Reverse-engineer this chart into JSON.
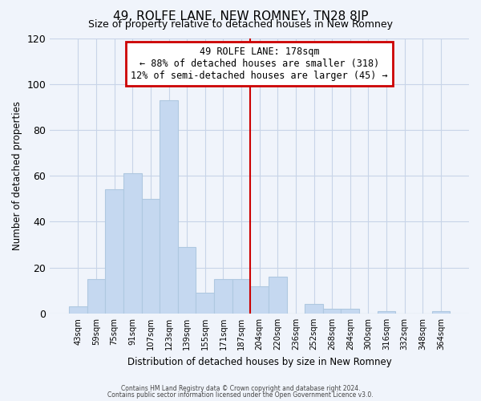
{
  "title": "49, ROLFE LANE, NEW ROMNEY, TN28 8JP",
  "subtitle": "Size of property relative to detached houses in New Romney",
  "xlabel": "Distribution of detached houses by size in New Romney",
  "ylabel": "Number of detached properties",
  "bar_labels": [
    "43sqm",
    "59sqm",
    "75sqm",
    "91sqm",
    "107sqm",
    "123sqm",
    "139sqm",
    "155sqm",
    "171sqm",
    "187sqm",
    "204sqm",
    "220sqm",
    "236sqm",
    "252sqm",
    "268sqm",
    "284sqm",
    "300sqm",
    "316sqm",
    "332sqm",
    "348sqm",
    "364sqm"
  ],
  "bar_values": [
    3,
    15,
    54,
    61,
    50,
    93,
    29,
    9,
    15,
    15,
    12,
    16,
    0,
    4,
    2,
    2,
    0,
    1,
    0,
    0,
    1
  ],
  "bar_color": "#c5d8f0",
  "bar_edge_color": "#afc8e0",
  "ylim": [
    0,
    120
  ],
  "yticks": [
    0,
    20,
    40,
    60,
    80,
    100,
    120
  ],
  "property_line_x": 9.5,
  "annotation_title": "49 ROLFE LANE: 178sqm",
  "annotation_line1": "← 88% of detached houses are smaller (318)",
  "annotation_line2": "12% of semi-detached houses are larger (45) →",
  "annotation_box_color": "#ffffff",
  "annotation_box_edge": "#cc0000",
  "vline_color": "#cc0000",
  "footer1": "Contains HM Land Registry data © Crown copyright and database right 2024.",
  "footer2": "Contains public sector information licensed under the Open Government Licence v3.0.",
  "bg_color": "#f0f4fb",
  "grid_color": "#c8d4e8"
}
